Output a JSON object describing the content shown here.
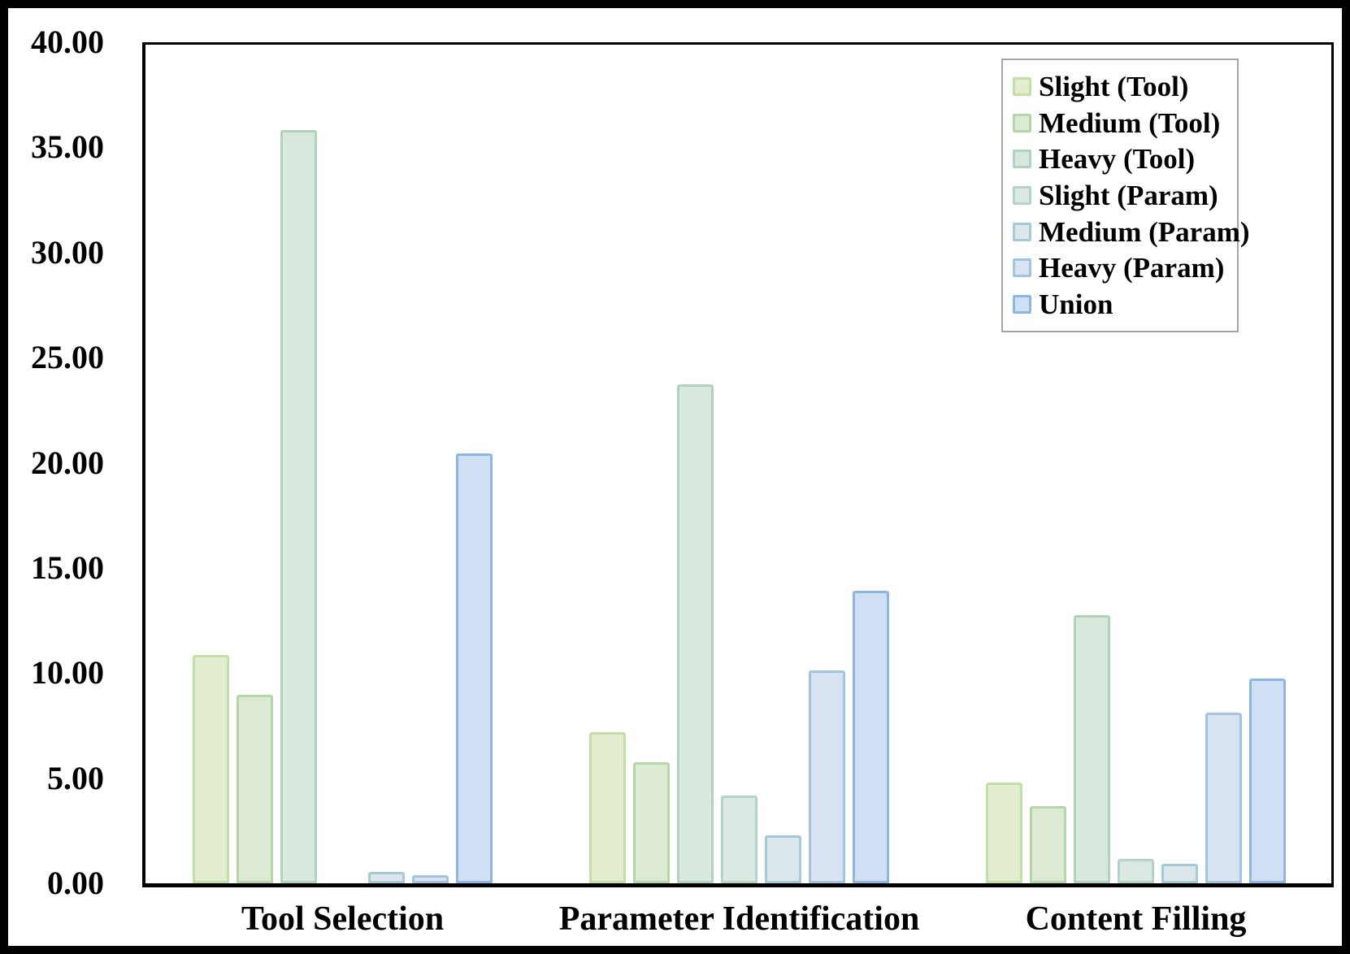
{
  "chart_data": {
    "type": "bar",
    "title": "",
    "categories": [
      "Tool Selection",
      "Parameter Identification",
      "Content Filling"
    ],
    "series": [
      {
        "name": "Slight (Tool)",
        "fill": "#e2eecf",
        "border": "#c3dfa6",
        "values": [
          10.86,
          7.19,
          4.79
        ]
      },
      {
        "name": "Medium (Tool)",
        "fill": "#dcead4",
        "border": "#b5d7a7",
        "values": [
          8.97,
          5.76,
          3.67
        ]
      },
      {
        "name": "Heavy (Tool)",
        "fill": "#d9e8dc",
        "border": "#afd3bc",
        "values": [
          35.83,
          23.73,
          12.75
        ]
      },
      {
        "name": "Slight (Param)",
        "fill": "#dbe9e2",
        "border": "#b2d5c8",
        "values": [
          0,
          4.17,
          1.16
        ]
      },
      {
        "name": "Medium (Param)",
        "fill": "#dbe7eb",
        "border": "#a5cad7",
        "values": [
          0.54,
          2.28,
          0.93
        ]
      },
      {
        "name": "Heavy (Param)",
        "fill": "#d7e3f0",
        "border": "#a3c4e0",
        "values": [
          0.39,
          10.13,
          8.12
        ]
      },
      {
        "name": "Union",
        "fill": "#cfe0f4",
        "border": "#8eb6e3",
        "values": [
          20.44,
          13.91,
          9.74
        ]
      }
    ],
    "xlabel": "",
    "ylabel": "",
    "ylim": [
      0,
      40
    ],
    "ytick_step": 5,
    "ytick_format_decimals": 2,
    "grid": "off",
    "legend_position": "top-right"
  },
  "colors": {
    "background": "#ffffff",
    "frame": "#000000",
    "axis": "#000000",
    "legend_border": "#a6a6a6",
    "text": "#000000"
  }
}
